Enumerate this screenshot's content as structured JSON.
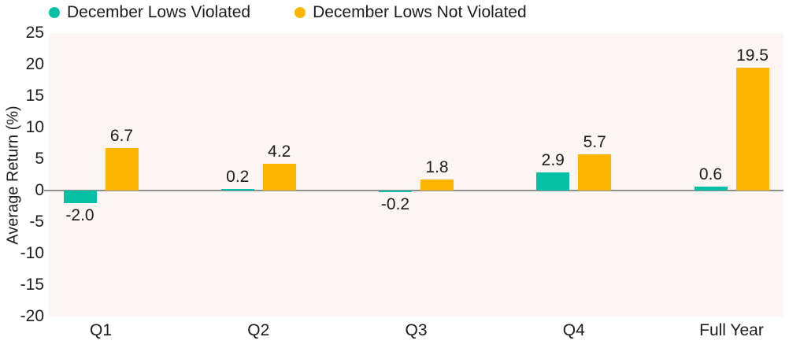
{
  "legend": {
    "items": [
      {
        "label": "December Lows Violated",
        "color": "#06c0a5"
      },
      {
        "label": "December Lows Not Violated",
        "color": "#fdb600"
      }
    ]
  },
  "chart_data": {
    "type": "bar",
    "title": "",
    "categories": [
      "Q1",
      "Q2",
      "Q3",
      "Q4",
      "Full Year"
    ],
    "series": [
      {
        "name": "December Lows Violated",
        "color": "#06c0a5",
        "values": [
          -2.0,
          0.2,
          -0.2,
          2.9,
          0.6
        ]
      },
      {
        "name": "December Lows Not Violated",
        "color": "#fdb600",
        "values": [
          6.7,
          4.2,
          1.8,
          5.7,
          19.5
        ]
      }
    ],
    "value_labels": [
      "-2.0",
      "0.2",
      "-0.2",
      "2.9",
      "0.6",
      "6.7",
      "4.2",
      "1.8",
      "5.7",
      "19.5"
    ],
    "xlabel": "",
    "ylabel": "Average Return (%)",
    "ylim": [
      -20,
      25
    ],
    "yticks": [
      25,
      20,
      15,
      10,
      5,
      0,
      -5,
      -10,
      -15,
      -20
    ],
    "grid": false,
    "legend_position": "top",
    "plot_background": "#fdf5f3",
    "zero_line_color": "#8f8f8f",
    "text_color": "#1c1c1c"
  }
}
